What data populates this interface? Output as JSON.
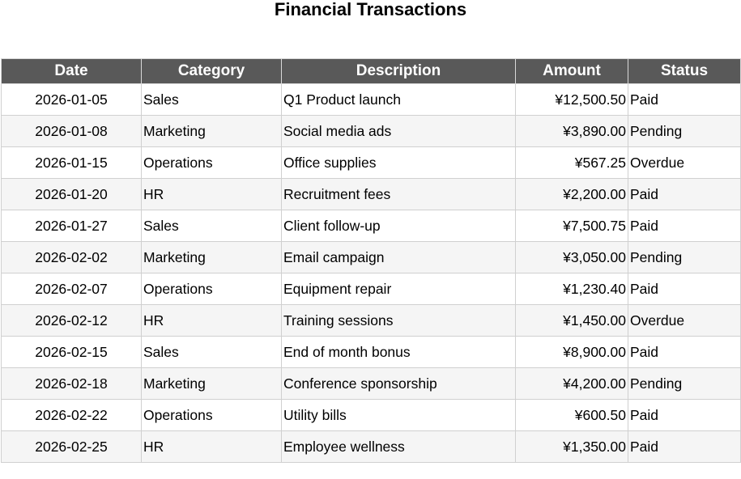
{
  "title": "Financial Transactions",
  "columns": {
    "date": "Date",
    "category": "Category",
    "description": "Description",
    "amount": "Amount",
    "status": "Status"
  },
  "rows": [
    {
      "date": "2026-01-05",
      "category": "Sales",
      "description": "Q1 Product launch",
      "amount": "¥12,500.50",
      "status": "Paid"
    },
    {
      "date": "2026-01-08",
      "category": "Marketing",
      "description": "Social media ads",
      "amount": "¥3,890.00",
      "status": "Pending"
    },
    {
      "date": "2026-01-15",
      "category": "Operations",
      "description": "Office supplies",
      "amount": "¥567.25",
      "status": "Overdue"
    },
    {
      "date": "2026-01-20",
      "category": "HR",
      "description": "Recruitment fees",
      "amount": "¥2,200.00",
      "status": "Paid"
    },
    {
      "date": "2026-01-27",
      "category": "Sales",
      "description": "Client follow-up",
      "amount": "¥7,500.75",
      "status": "Paid"
    },
    {
      "date": "2026-02-02",
      "category": "Marketing",
      "description": "Email campaign",
      "amount": "¥3,050.00",
      "status": "Pending"
    },
    {
      "date": "2026-02-07",
      "category": "Operations",
      "description": "Equipment repair",
      "amount": "¥1,230.40",
      "status": "Paid"
    },
    {
      "date": "2026-02-12",
      "category": "HR",
      "description": "Training sessions",
      "amount": "¥1,450.00",
      "status": "Overdue"
    },
    {
      "date": "2026-02-15",
      "category": "Sales",
      "description": "End of month bonus",
      "amount": "¥8,900.00",
      "status": "Paid"
    },
    {
      "date": "2026-02-18",
      "category": "Marketing",
      "description": "Conference sponsorship",
      "amount": "¥4,200.00",
      "status": "Pending"
    },
    {
      "date": "2026-02-22",
      "category": "Operations",
      "description": "Utility bills",
      "amount": "¥600.50",
      "status": "Paid"
    },
    {
      "date": "2026-02-25",
      "category": "HR",
      "description": "Employee wellness",
      "amount": "¥1,350.00",
      "status": "Paid"
    }
  ],
  "colors": {
    "header_bg": "#595959",
    "header_text": "#ffffff",
    "stripe_bg": "#f5f5f5",
    "grid_line": "#d0d0d0"
  }
}
